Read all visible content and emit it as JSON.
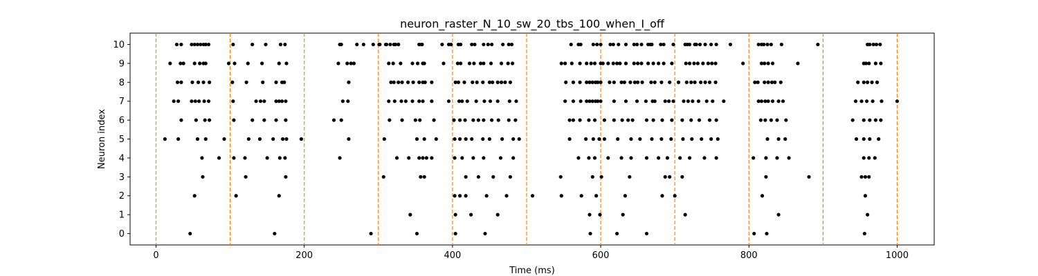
{
  "chart_data": {
    "type": "scatter",
    "title": "neuron_raster_N_10_sw_20_tbs_100_when_I_off",
    "xlabel": "Time (ms)",
    "ylabel": "Neuron index",
    "xlim": [
      -35,
      1050
    ],
    "ylim": [
      -0.6,
      10.6
    ],
    "xticks": [
      0,
      200,
      400,
      600,
      800,
      1000
    ],
    "yticks": [
      0,
      1,
      2,
      3,
      4,
      5,
      6,
      7,
      8,
      9,
      10
    ],
    "grid": false,
    "legend": "none",
    "marker_color": "#000000",
    "vline_color": "#ff7f0e",
    "vlines": [
      0,
      100,
      200,
      300,
      400,
      500,
      600,
      700,
      800,
      900,
      1000
    ],
    "series": [
      {
        "values": [
          {
            "neuron": 10,
            "times": [
              28,
              34,
              48,
              52,
              56,
              60,
              64,
              67,
              71,
              104,
              130,
              148,
              168,
              174,
              248,
              250,
              271,
              280,
              293,
              301,
              302,
              310,
              311,
              316,
              321,
              323,
              327,
              327,
              355,
              358,
              359,
              386,
              395,
              398,
              408,
              411,
              426,
              430,
              442,
              448,
              453,
              468,
              476,
              480,
              560,
              570,
              573,
              590,
              595,
              600,
              613,
              617,
              624,
              634,
              645,
              649,
              655,
              664,
              667,
              669,
              681,
              685,
              698,
              714,
              717,
              720,
              727,
              729,
              734,
              741,
              749,
              756,
              775,
              813,
              817,
              820,
              825,
              830,
              844,
              893,
              960,
              963,
              968,
              972,
              977
            ]
          },
          {
            "neuron": 9,
            "times": [
              19,
              33,
              37,
              52,
              59,
              64,
              67,
              98,
              106,
              124,
              143,
              166,
              176,
              246,
              258,
              263,
              267,
              314,
              320,
              330,
              346,
              353,
              360,
              362,
              388,
              407,
              411,
              423,
              429,
              438,
              442,
              452,
              466,
              475,
              481,
              547,
              552,
              561,
              572,
              581,
              587,
              592,
              600,
              603,
              610,
              617,
              622,
              626,
              634,
              645,
              650,
              655,
              664,
              671,
              678,
              685,
              696,
              715,
              720,
              726,
              731,
              738,
              745,
              750,
              755,
              792,
              817,
              821,
              826,
              832,
              866,
              955,
              958,
              962,
              971,
              978
            ]
          },
          {
            "neuron": 8,
            "times": [
              29,
              34,
              49,
              57,
              64,
              72,
              103,
              122,
              144,
              162,
              170,
              173,
              260,
              317,
              321,
              327,
              332,
              340,
              347,
              355,
              360,
              363,
              372,
              404,
              408,
              416,
              427,
              433,
              441,
              450,
              454,
              461,
              466,
              471,
              478,
              553,
              563,
              572,
              581,
              585,
              589,
              593,
              596,
              600,
              612,
              618,
              628,
              632,
              640,
              646,
              650,
              656,
              668,
              673,
              682,
              693,
              705,
              716,
              722,
              727,
              735,
              741,
              747,
              755,
              808,
              812,
              821,
              826,
              831,
              835,
              843,
              947,
              955,
              960,
              966,
              973
            ]
          },
          {
            "neuron": 7,
            "times": [
              24,
              30,
              48,
              53,
              58,
              65,
              71,
              104,
              135,
              141,
              146,
              162,
              166,
              170,
              175,
              252,
              259,
              314,
              322,
              331,
              337,
              346,
              355,
              360,
              372,
              395,
              409,
              413,
              420,
              432,
              443,
              451,
              461,
              477,
              486,
              552,
              563,
              573,
              581,
              585,
              589,
              593,
              596,
              600,
              618,
              634,
              649,
              661,
              670,
              673,
              687,
              692,
              698,
              712,
              718,
              724,
              732,
              743,
              751,
              766,
              813,
              817,
              822,
              826,
              832,
              840,
              846,
              944,
              952,
              959,
              967,
              979,
              1000
            ]
          },
          {
            "neuron": 6,
            "times": [
              34,
              54,
              66,
              72,
              105,
              130,
              146,
              162,
              175,
              240,
              250,
              315,
              332,
              350,
              356,
              375,
              402,
              410,
              417,
              428,
              435,
              442,
              453,
              462,
              476,
              485,
              558,
              563,
              572,
              584,
              592,
              605,
              618,
              629,
              637,
              643,
              662,
              671,
              683,
              696,
              710,
              722,
              733,
              747,
              756,
              816,
              822,
              830,
              838,
              850,
              940,
              955,
              963,
              971,
              978
            ]
          },
          {
            "neuron": 5,
            "times": [
              12,
              30,
              56,
              67,
              92,
              125,
              140,
              158,
              171,
              176,
              196,
              260,
              308,
              352,
              362,
              378,
              403,
              410,
              418,
              426,
              441,
              450,
              467,
              482,
              490,
              558,
              580,
              590,
              598,
              605,
              623,
              641,
              653,
              669,
              682,
              695,
              711,
              723,
              736,
              749,
              758,
              825,
              840,
              849,
              945,
              955,
              963,
              975
            ]
          },
          {
            "neuron": 4,
            "times": [
              62,
              85,
              105,
              120,
              150,
              167,
              174,
              248,
              325,
              341,
              355,
              360,
              365,
              372,
              403,
              413,
              428,
              442,
              465,
              482,
              570,
              584,
              592,
              610,
              628,
              641,
              662,
              678,
              690,
              707,
              720,
              740,
              756,
              806,
              823,
              838,
              854,
              955,
              962,
              970
            ]
          },
          {
            "neuron": 3,
            "times": [
              63,
              121,
              175,
              307,
              357,
              362,
              418,
              435,
              455,
              478,
              546,
              589,
              601,
              639,
              687,
              693,
              710,
              823,
              881,
              952,
              957,
              962
            ]
          },
          {
            "neuron": 2,
            "times": [
              52,
              108,
              166,
              403,
              410,
              418,
              446,
              473,
              508,
              547,
              574,
              594,
              633,
              683,
              700,
              818,
              957
            ]
          },
          {
            "neuron": 1,
            "times": [
              343,
              404,
              425,
              461,
              585,
              599,
              630,
              714,
              840,
              960
            ]
          },
          {
            "neuron": 0,
            "times": [
              46,
              160,
              290,
              352,
              404,
              444,
              586,
              622,
              662,
              807,
              824,
              956
            ]
          }
        ]
      }
    ]
  }
}
